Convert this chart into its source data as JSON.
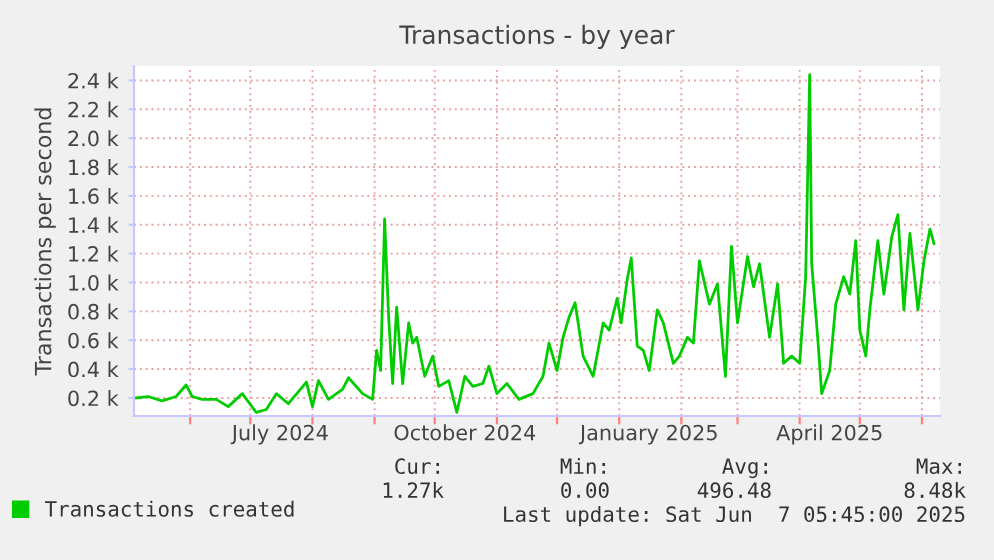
{
  "chart_data": {
    "type": "line",
    "title": "Transactions - by year",
    "ylabel": "Transactions per second",
    "xlim": [
      "2024-05-04",
      "2025-06-10"
    ],
    "xticks": [
      {
        "value": "2024-06-01",
        "label": null
      },
      {
        "value": "2024-07-01",
        "label": null
      },
      {
        "value": "2024-07-16",
        "label": "July 2024"
      },
      {
        "value": "2024-08-01",
        "label": null
      },
      {
        "value": "2024-09-01",
        "label": null
      },
      {
        "value": "2024-10-01",
        "label": null
      },
      {
        "value": "2024-10-16",
        "label": "October 2024"
      },
      {
        "value": "2024-11-01",
        "label": null
      },
      {
        "value": "2024-12-01",
        "label": null
      },
      {
        "value": "2025-01-01",
        "label": null
      },
      {
        "value": "2025-01-16",
        "label": "January 2025"
      },
      {
        "value": "2025-02-01",
        "label": null
      },
      {
        "value": "2025-03-01",
        "label": null
      },
      {
        "value": "2025-04-01",
        "label": null
      },
      {
        "value": "2025-04-16",
        "label": "April 2025"
      },
      {
        "value": "2025-05-01",
        "label": null
      },
      {
        "value": "2025-06-01",
        "label": null
      }
    ],
    "ylim": [
      75,
      2500
    ],
    "yticks": [
      {
        "value": 200,
        "label": "0.2 k"
      },
      {
        "value": 400,
        "label": "0.4 k"
      },
      {
        "value": 600,
        "label": "0.6 k"
      },
      {
        "value": 800,
        "label": "0.8 k"
      },
      {
        "value": 1000,
        "label": "1.0 k"
      },
      {
        "value": 1200,
        "label": "1.2 k"
      },
      {
        "value": 1400,
        "label": "1.4 k"
      },
      {
        "value": 1600,
        "label": "1.6 k"
      },
      {
        "value": 1800,
        "label": "1.8 k"
      },
      {
        "value": 2000,
        "label": "2.0 k"
      },
      {
        "value": 2200,
        "label": "2.2 k"
      },
      {
        "value": 2400,
        "label": "2.4 k"
      }
    ],
    "grid": true,
    "legend": "bottom left",
    "marker": "none",
    "line_style": "solid",
    "series": [
      {
        "name": "Transactions created",
        "color": "#00cc00",
        "x": [
          "2024-05-05",
          "2024-05-11",
          "2024-05-18",
          "2024-05-25",
          "2024-05-30",
          "2024-06-02",
          "2024-06-07",
          "2024-06-14",
          "2024-06-20",
          "2024-06-27",
          "2024-07-04",
          "2024-07-09",
          "2024-07-14",
          "2024-07-20",
          "2024-07-29",
          "2024-08-01",
          "2024-08-04",
          "2024-08-09",
          "2024-08-16",
          "2024-08-19",
          "2024-08-26",
          "2024-08-31",
          "2024-09-02",
          "2024-09-04",
          "2024-09-06",
          "2024-09-08",
          "2024-09-10",
          "2024-09-12",
          "2024-09-15",
          "2024-09-18",
          "2024-09-20",
          "2024-09-22",
          "2024-09-26",
          "2024-09-30",
          "2024-10-03",
          "2024-10-08",
          "2024-10-12",
          "2024-10-16",
          "2024-10-20",
          "2024-10-25",
          "2024-10-28",
          "2024-11-01",
          "2024-11-06",
          "2024-11-12",
          "2024-11-19",
          "2024-11-24",
          "2024-11-27",
          "2024-12-01",
          "2024-12-04",
          "2024-12-07",
          "2024-12-10",
          "2024-12-14",
          "2024-12-19",
          "2024-12-24",
          "2024-12-27",
          "2024-12-31",
          "2025-01-02",
          "2025-01-05",
          "2025-01-07",
          "2025-01-10",
          "2025-01-13",
          "2025-01-16",
          "2025-01-20",
          "2025-01-23",
          "2025-01-28",
          "2025-01-31",
          "2025-02-04",
          "2025-02-07",
          "2025-02-10",
          "2025-02-15",
          "2025-02-19",
          "2025-02-23",
          "2025-02-26",
          "2025-03-01",
          "2025-03-06",
          "2025-03-09",
          "2025-03-12",
          "2025-03-17",
          "2025-03-21",
          "2025-03-24",
          "2025-03-28",
          "2025-04-01",
          "2025-04-04",
          "2025-04-06",
          "2025-04-07",
          "2025-04-10",
          "2025-04-12",
          "2025-04-16",
          "2025-04-19",
          "2025-04-23",
          "2025-04-26",
          "2025-04-29",
          "2025-05-01",
          "2025-05-04",
          "2025-05-06",
          "2025-05-10",
          "2025-05-13",
          "2025-05-17",
          "2025-05-20",
          "2025-05-23",
          "2025-05-26",
          "2025-05-30",
          "2025-06-02",
          "2025-06-05",
          "2025-06-07"
        ],
        "values": [
          200,
          210,
          180,
          210,
          290,
          210,
          190,
          190,
          140,
          230,
          100,
          120,
          230,
          160,
          310,
          140,
          320,
          190,
          260,
          340,
          230,
          190,
          530,
          390,
          1440,
          760,
          300,
          830,
          300,
          720,
          580,
          620,
          350,
          490,
          280,
          320,
          100,
          350,
          280,
          300,
          420,
          230,
          300,
          190,
          230,
          350,
          580,
          390,
          620,
          760,
          860,
          490,
          350,
          720,
          670,
          890,
          720,
          1020,
          1170,
          560,
          530,
          390,
          810,
          720,
          440,
          490,
          620,
          580,
          1150,
          850,
          990,
          350,
          1250,
          720,
          1180,
          970,
          1130,
          620,
          990,
          440,
          490,
          440,
          1040,
          2440,
          1130,
          620,
          230,
          390,
          850,
          1040,
          920,
          1290,
          670,
          490,
          810,
          1290,
          920,
          1320,
          1470,
          810,
          1340,
          810,
          1150,
          1370,
          1270
        ]
      }
    ],
    "annotations": [
      "Cur:",
      "Min:",
      "Avg:",
      "Max:",
      "1.27k",
      "0.00",
      "496.48",
      "8.48k",
      "Last update: Sat Jun  7 05:45:00 2025"
    ]
  }
}
